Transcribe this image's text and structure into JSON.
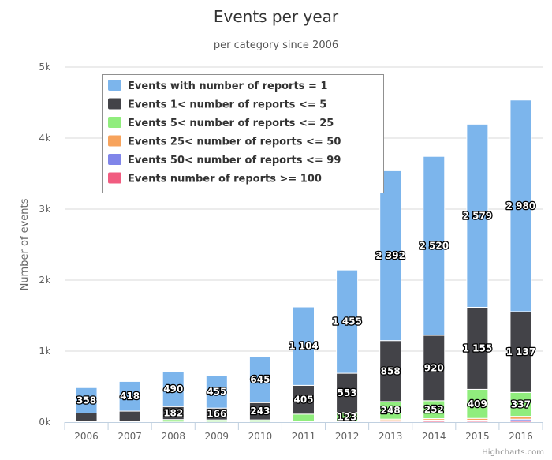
{
  "chart_data": {
    "type": "bar",
    "stacked": true,
    "title": "Events per year",
    "subtitle": "per category since 2006",
    "ylabel": "Number of events",
    "xlabel": "",
    "ylim": [
      0,
      5000
    ],
    "y_ticks": [
      "0k",
      "1k",
      "2k",
      "3k",
      "4k",
      "5k"
    ],
    "categories": [
      "2006",
      "2007",
      "2008",
      "2009",
      "2010",
      "2011",
      "2012",
      "2013",
      "2014",
      "2015",
      "2016"
    ],
    "series": [
      {
        "name": "Events with number of reports = 1",
        "color": "#7cb5ec",
        "values": [
          358,
          418,
          490,
          455,
          645,
          1104,
          1455,
          2392,
          2520,
          2579,
          2980
        ],
        "labels": [
          "358",
          "418",
          "490",
          "455",
          "645",
          "1 104",
          "1 455",
          "2 392",
          "2 520",
          "2 579",
          "2 980"
        ]
      },
      {
        "name": "Events 1< number of reports <= 5",
        "color": "#434348",
        "values": [
          120,
          145,
          182,
          166,
          243,
          405,
          553,
          858,
          920,
          1155,
          1137
        ],
        "labels": [
          "",
          "",
          "182",
          "166",
          "243",
          "405",
          "553",
          "858",
          "920",
          "1 155",
          "1 137"
        ]
      },
      {
        "name": "Events 5< number of reports <= 25",
        "color": "#90ed7d",
        "values": [
          8,
          10,
          35,
          30,
          30,
          105,
          123,
          248,
          252,
          409,
          337
        ],
        "labels": [
          "",
          "",
          "",
          "",
          "",
          "",
          "123",
          "248",
          "252",
          "409",
          "337"
        ]
      },
      {
        "name": "Events 25< number of reports <= 50",
        "color": "#f7a35c",
        "values": [
          0,
          0,
          2,
          2,
          2,
          4,
          6,
          18,
          20,
          25,
          40
        ],
        "labels": [
          "",
          "",
          "",
          "",
          "",
          "",
          "",
          "",
          "",
          "",
          ""
        ]
      },
      {
        "name": "Events 50< number of reports <= 99",
        "color": "#8085e9",
        "values": [
          0,
          0,
          0,
          0,
          0,
          2,
          3,
          10,
          10,
          12,
          22
        ],
        "labels": [
          "",
          "",
          "",
          "",
          "",
          "",
          "",
          "",
          "",
          "",
          ""
        ]
      },
      {
        "name": "Events number of reports >= 100",
        "color": "#f15c80",
        "values": [
          0,
          0,
          0,
          0,
          0,
          2,
          3,
          14,
          20,
          16,
          20
        ],
        "labels": [
          "",
          "",
          "",
          "",
          "",
          "",
          "",
          "",
          "",
          "",
          ""
        ]
      }
    ],
    "legend": "top-left",
    "grid": true
  },
  "credits": "Highcharts.com"
}
